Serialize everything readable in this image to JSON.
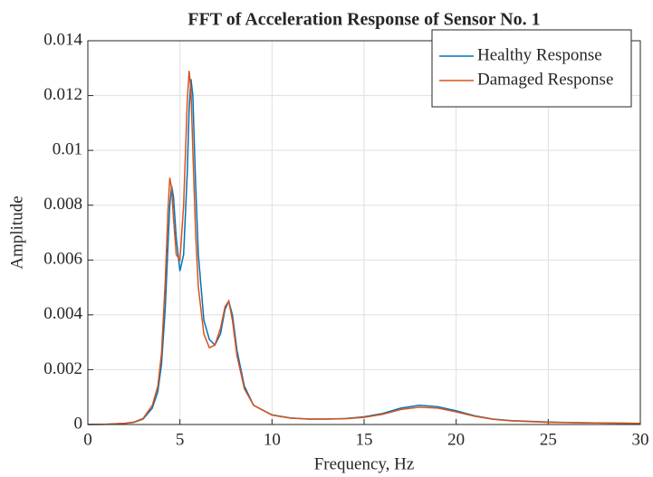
{
  "chart_data": {
    "type": "line",
    "title": "FFT of Acceleration Response of Sensor No. 1",
    "xlabel": "Frequency, Hz",
    "ylabel": "Amplitude",
    "x": [
      0,
      1,
      2,
      2.5,
      3,
      3.5,
      3.8,
      4,
      4.2,
      4.35,
      4.45,
      4.55,
      4.65,
      4.8,
      5.0,
      5.2,
      5.4,
      5.5,
      5.6,
      5.7,
      5.85,
      6.0,
      6.3,
      6.6,
      6.9,
      7.2,
      7.45,
      7.65,
      7.85,
      8.1,
      8.5,
      9,
      10,
      11,
      12,
      13,
      14,
      15,
      16,
      17,
      18,
      19,
      20,
      21,
      22,
      23,
      25,
      27,
      30
    ],
    "series": [
      {
        "name": "Healthy Response",
        "color": "#0072bd",
        "values": [
          0,
          1e-05,
          4e-05,
          8e-05,
          0.0002,
          0.0006,
          0.0012,
          0.0022,
          0.0042,
          0.0065,
          0.008,
          0.0087,
          0.0083,
          0.0068,
          0.0056,
          0.0062,
          0.0092,
          0.0115,
          0.0126,
          0.012,
          0.0088,
          0.0062,
          0.0038,
          0.0031,
          0.0029,
          0.0033,
          0.0042,
          0.0045,
          0.004,
          0.0027,
          0.0014,
          0.0007,
          0.00035,
          0.00024,
          0.0002,
          0.0002,
          0.00022,
          0.00028,
          0.0004,
          0.0006,
          0.0007,
          0.00065,
          0.0005,
          0.00032,
          0.0002,
          0.00014,
          9e-05,
          6e-05,
          4e-05
        ]
      },
      {
        "name": "Damaged Response",
        "color": "#d95319",
        "values": [
          0,
          1e-05,
          4e-05,
          9e-05,
          0.00022,
          0.0007,
          0.0014,
          0.0026,
          0.0052,
          0.0078,
          0.009,
          0.0086,
          0.0075,
          0.0062,
          0.006,
          0.008,
          0.0118,
          0.0129,
          0.0122,
          0.01,
          0.007,
          0.005,
          0.0033,
          0.0028,
          0.0029,
          0.0035,
          0.0043,
          0.0045,
          0.0038,
          0.0025,
          0.0013,
          0.0007,
          0.00034,
          0.00023,
          0.0002,
          0.0002,
          0.00021,
          0.00026,
          0.00037,
          0.00055,
          0.00063,
          0.0006,
          0.00046,
          0.0003,
          0.00019,
          0.00013,
          8e-05,
          6e-05,
          4e-05
        ]
      }
    ],
    "xlim": [
      0,
      30
    ],
    "xticks": [
      0,
      5,
      10,
      15,
      20,
      25,
      30
    ],
    "ylim": [
      0,
      0.014
    ],
    "yticks": [
      0,
      0.002,
      0.004,
      0.006,
      0.008,
      0.01,
      0.012,
      0.014
    ],
    "grid": true,
    "legend": "upper-right"
  }
}
